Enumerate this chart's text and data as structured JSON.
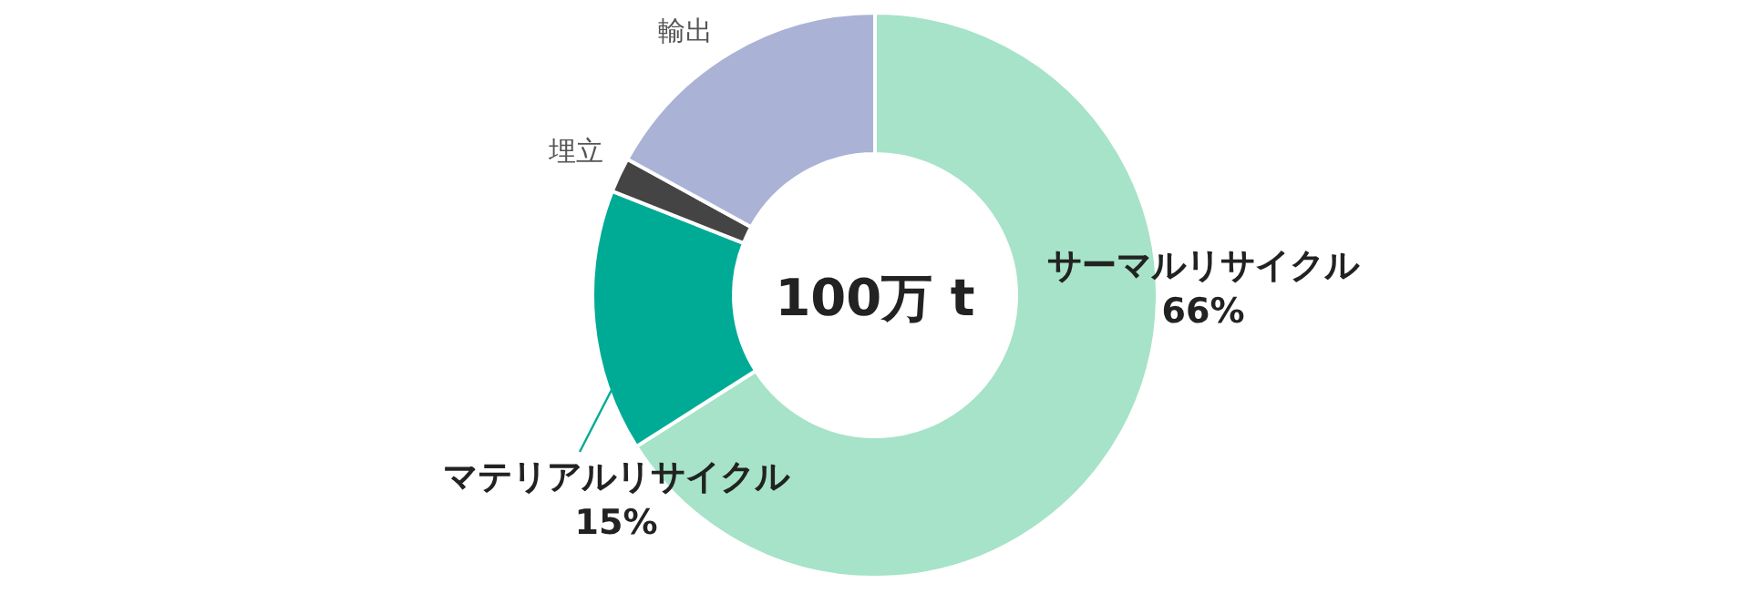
{
  "chart_data": {
    "type": "donut",
    "categories": [
      "サーマルリサイクル",
      "マテリアルリサイクル",
      "埋立",
      "輸出"
    ],
    "values": [
      66,
      15,
      2,
      17
    ],
    "colors": [
      "#a6e3c8",
      "#00ab96",
      "#444444",
      "#aab2d6"
    ],
    "value_labels": [
      "66%",
      "15%",
      null,
      null
    ],
    "annotations": [
      "100万 t"
    ]
  }
}
